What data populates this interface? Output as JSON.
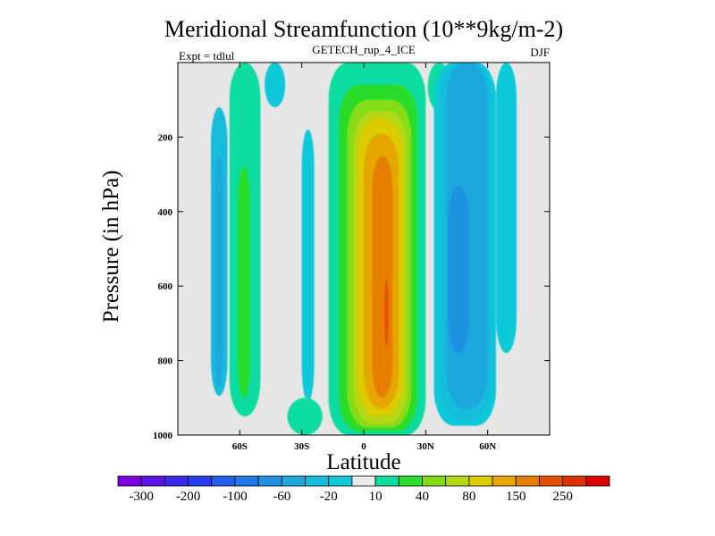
{
  "chart_data": {
    "type": "heatmap",
    "title": "Meridional Streamfunction (10**9kg/m-2)",
    "subtitle": "GETECH_rup_4_ICE",
    "left_annotation": "Expt = tdlul",
    "right_annotation": "DJF",
    "xlabel": "Latitude",
    "ylabel": "Pressure (in hPa)",
    "xlim": [
      -90,
      90
    ],
    "ylim": [
      1000,
      0
    ],
    "x_ticks": [
      {
        "value": -60,
        "label": "60S"
      },
      {
        "value": -30,
        "label": "30S"
      },
      {
        "value": 0,
        "label": "0"
      },
      {
        "value": 30,
        "label": "30N"
      },
      {
        "value": 60,
        "label": "60N"
      }
    ],
    "y_ticks": [
      {
        "value": 200,
        "label": "200"
      },
      {
        "value": 400,
        "label": "400"
      },
      {
        "value": 600,
        "label": "600"
      },
      {
        "value": 800,
        "label": "800"
      },
      {
        "value": 1000,
        "label": "1000"
      }
    ],
    "plot_background": "#e6e6e6",
    "colorbar": {
      "levels": [
        -300,
        -250,
        -200,
        -150,
        -100,
        -80,
        -60,
        -40,
        -20,
        -10,
        10,
        20,
        40,
        60,
        80,
        100,
        150,
        200,
        250,
        300
      ],
      "colors": [
        "#7a00dc",
        "#5a14e6",
        "#3c28ec",
        "#283cf0",
        "#2060ec",
        "#2078e8",
        "#1e92e0",
        "#1ea8dc",
        "#18bcdc",
        "#10c8d8",
        "#ececec",
        "#10dca0",
        "#2cdc2c",
        "#86dc14",
        "#b4d814",
        "#dccc00",
        "#e6a800",
        "#e67e00",
        "#e65000",
        "#e03000",
        "#dc0000"
      ],
      "labels": [
        {
          "after_index": 0,
          "text": "-300"
        },
        {
          "after_index": 2,
          "text": "-200"
        },
        {
          "after_index": 4,
          "text": "-100"
        },
        {
          "after_index": 6,
          "text": "-60"
        },
        {
          "after_index": 8,
          "text": "-20"
        },
        {
          "after_index": 10,
          "text": "10"
        },
        {
          "after_index": 12,
          "text": "40"
        },
        {
          "after_index": 14,
          "text": "80"
        },
        {
          "after_index": 16,
          "text": "150"
        },
        {
          "after_index": 18,
          "text": "250"
        }
      ]
    },
    "shaded_regions": [
      {
        "name": "sh-polar-band",
        "level": "-20",
        "color": "#18bcdc",
        "lat_range": [
          -74,
          -66
        ],
        "pressure_range": [
          120,
          895
        ]
      },
      {
        "name": "sh-polar-core",
        "level": "-40",
        "color": "#1ea8dc",
        "lat_range": [
          -72,
          -68
        ],
        "pressure_range": [
          250,
          870
        ]
      },
      {
        "name": "sh-mid-band",
        "level": "10",
        "color": "#10dca0",
        "lat_range": [
          -65,
          -50
        ],
        "pressure_range": [
          0,
          950
        ]
      },
      {
        "name": "sh-mid-core",
        "level": "20",
        "color": "#2cdc2c",
        "lat_range": [
          -61,
          -55
        ],
        "pressure_range": [
          280,
          900
        ]
      },
      {
        "name": "sh-upper-cell",
        "level": "-10",
        "color": "#10c8d8",
        "lat_range": [
          -48,
          -38
        ],
        "pressure_range": [
          0,
          120
        ]
      },
      {
        "name": "sh-subtrop-band",
        "level": "-10",
        "color": "#10c8d8",
        "lat_range": [
          -30,
          -24
        ],
        "pressure_range": [
          180,
          910
        ]
      },
      {
        "name": "sh-subtrop-surface",
        "level": "10",
        "color": "#10dca0",
        "lat_range": [
          -37,
          -20
        ],
        "pressure_range": [
          900,
          1000
        ]
      },
      {
        "name": "hadley-10",
        "level": "10",
        "color": "#10dca0",
        "lat_range": [
          -17,
          30
        ],
        "pressure_range": [
          0,
          1000
        ]
      },
      {
        "name": "hadley-20",
        "level": "20",
        "color": "#2cdc2c",
        "lat_range": [
          -12,
          26
        ],
        "pressure_range": [
          60,
          990
        ]
      },
      {
        "name": "hadley-40",
        "level": "40",
        "color": "#86dc14",
        "lat_range": [
          -8,
          23
        ],
        "pressure_range": [
          100,
          980
        ]
      },
      {
        "name": "hadley-60",
        "level": "60",
        "color": "#b4d814",
        "lat_range": [
          -5,
          21
        ],
        "pressure_range": [
          130,
          970
        ]
      },
      {
        "name": "hadley-80",
        "level": "80",
        "color": "#dccc00",
        "lat_range": [
          -3,
          19
        ],
        "pressure_range": [
          150,
          950
        ]
      },
      {
        "name": "hadley-100",
        "level": "100",
        "color": "#e6a800",
        "lat_range": [
          0,
          17
        ],
        "pressure_range": [
          190,
          930
        ]
      },
      {
        "name": "hadley-150",
        "level": "150",
        "color": "#e67e00",
        "lat_range": [
          4,
          14
        ],
        "pressure_range": [
          250,
          900
        ]
      },
      {
        "name": "hadley-200",
        "level": "200",
        "color": "#e65000",
        "lat_range": [
          10,
          12
        ],
        "pressure_range": [
          580,
          760
        ]
      },
      {
        "name": "nh-upper-cell",
        "level": "10",
        "color": "#10dca0",
        "lat_range": [
          31,
          42
        ],
        "pressure_range": [
          0,
          130
        ]
      },
      {
        "name": "nh-ferrel-10",
        "level": "-10",
        "color": "#10c8d8",
        "lat_range": [
          34,
          64
        ],
        "pressure_range": [
          0,
          975
        ]
      },
      {
        "name": "nh-ferrel-20",
        "level": "-20",
        "color": "#18bcdc",
        "lat_range": [
          37,
          62
        ],
        "pressure_range": [
          0,
          955
        ]
      },
      {
        "name": "nh-ferrel-40",
        "level": "-40",
        "color": "#1ea8dc",
        "lat_range": [
          40,
          60
        ],
        "pressure_range": [
          0,
          930
        ]
      },
      {
        "name": "nh-ferrel-60",
        "level": "-60",
        "color": "#1e92e0",
        "lat_range": [
          41,
          51
        ],
        "pressure_range": [
          330,
          780
        ]
      },
      {
        "name": "nh-polar-band",
        "level": "-10",
        "color": "#10c8d8",
        "lat_range": [
          64,
          74
        ],
        "pressure_range": [
          0,
          780
        ]
      }
    ]
  }
}
